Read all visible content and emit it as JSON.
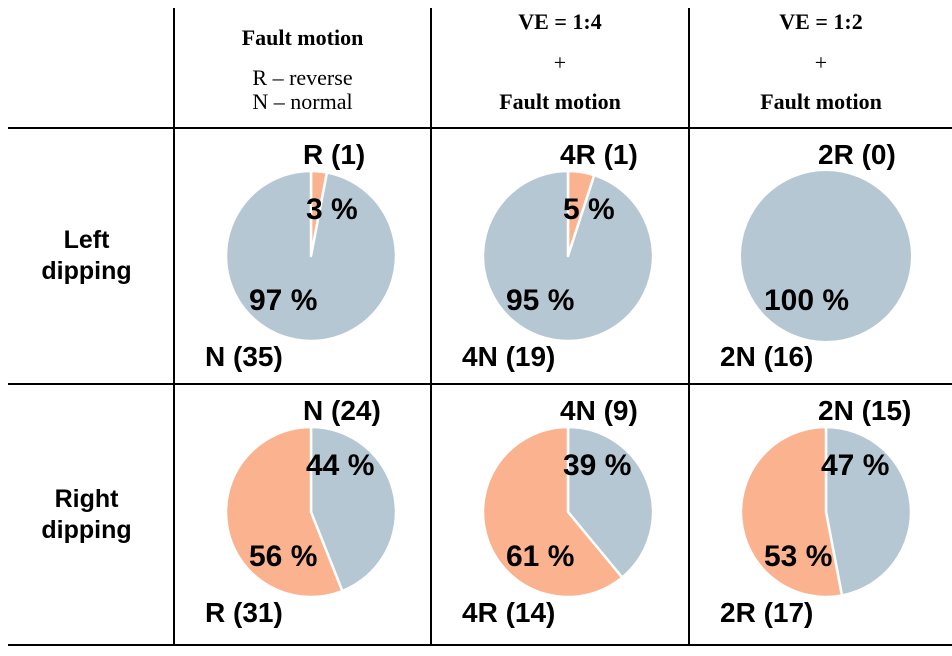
{
  "colors": {
    "normal_slice": "#b6c7d4",
    "reverse_slice": "#fbb28e",
    "slice_divider": "#ffffff",
    "border": "#000000",
    "text": "#000000",
    "background": "#ffffff"
  },
  "headers": {
    "col1": {
      "title": "Fault motion",
      "legend_reverse": "R – reverse",
      "legend_normal": "N – normal"
    },
    "col2": {
      "ve": "VE = 1:4",
      "plus": "+",
      "sub": "Fault motion"
    },
    "col3": {
      "ve": "VE = 1:2",
      "plus": "+",
      "sub": "Fault motion"
    }
  },
  "row_labels": {
    "left": {
      "line1": "Left",
      "line2": "dipping"
    },
    "right": {
      "line1": "Right",
      "line2": "dipping"
    }
  },
  "chart_data": [
    {
      "type": "pie",
      "row": "Left dipping",
      "condition": "Fault motion",
      "slices": [
        {
          "name": "R",
          "count": 1,
          "pct": 3,
          "label": "R (1)",
          "pct_label": "3 %",
          "color": "reverse"
        },
        {
          "name": "N",
          "count": 35,
          "pct": 97,
          "label": "N (35)",
          "pct_label": "97 %",
          "color": "normal"
        }
      ]
    },
    {
      "type": "pie",
      "row": "Left dipping",
      "condition": "VE = 1:4 + Fault motion",
      "slices": [
        {
          "name": "4R",
          "count": 1,
          "pct": 5,
          "label": "4R (1)",
          "pct_label": "5 %",
          "color": "reverse"
        },
        {
          "name": "4N",
          "count": 19,
          "pct": 95,
          "label": "4N (19)",
          "pct_label": "95 %",
          "color": "normal"
        }
      ]
    },
    {
      "type": "pie",
      "row": "Left dipping",
      "condition": "VE = 1:2 + Fault motion",
      "slices": [
        {
          "name": "2R",
          "count": 0,
          "pct": 0,
          "label": "2R (0)",
          "pct_label": "",
          "color": "reverse"
        },
        {
          "name": "2N",
          "count": 16,
          "pct": 100,
          "label": "2N (16)",
          "pct_label": "100 %",
          "color": "normal"
        }
      ]
    },
    {
      "type": "pie",
      "row": "Right dipping",
      "condition": "Fault motion",
      "slices": [
        {
          "name": "N",
          "count": 24,
          "pct": 44,
          "label": "N (24)",
          "pct_label": "44 %",
          "color": "normal"
        },
        {
          "name": "R",
          "count": 31,
          "pct": 56,
          "label": "R (31)",
          "pct_label": "56 %",
          "color": "reverse"
        }
      ]
    },
    {
      "type": "pie",
      "row": "Right dipping",
      "condition": "VE = 1:4 + Fault motion",
      "slices": [
        {
          "name": "4N",
          "count": 9,
          "pct": 39,
          "label": "4N (9)",
          "pct_label": "39 %",
          "color": "normal"
        },
        {
          "name": "4R",
          "count": 14,
          "pct": 61,
          "label": "4R (14)",
          "pct_label": "61 %",
          "color": "reverse"
        }
      ]
    },
    {
      "type": "pie",
      "row": "Right dipping",
      "condition": "VE = 1:2 + Fault motion",
      "slices": [
        {
          "name": "2N",
          "count": 15,
          "pct": 47,
          "label": "2N (15)",
          "pct_label": "47 %",
          "color": "normal"
        },
        {
          "name": "2R",
          "count": 17,
          "pct": 53,
          "label": "2R (17)",
          "pct_label": "53 %",
          "color": "reverse"
        }
      ]
    }
  ]
}
